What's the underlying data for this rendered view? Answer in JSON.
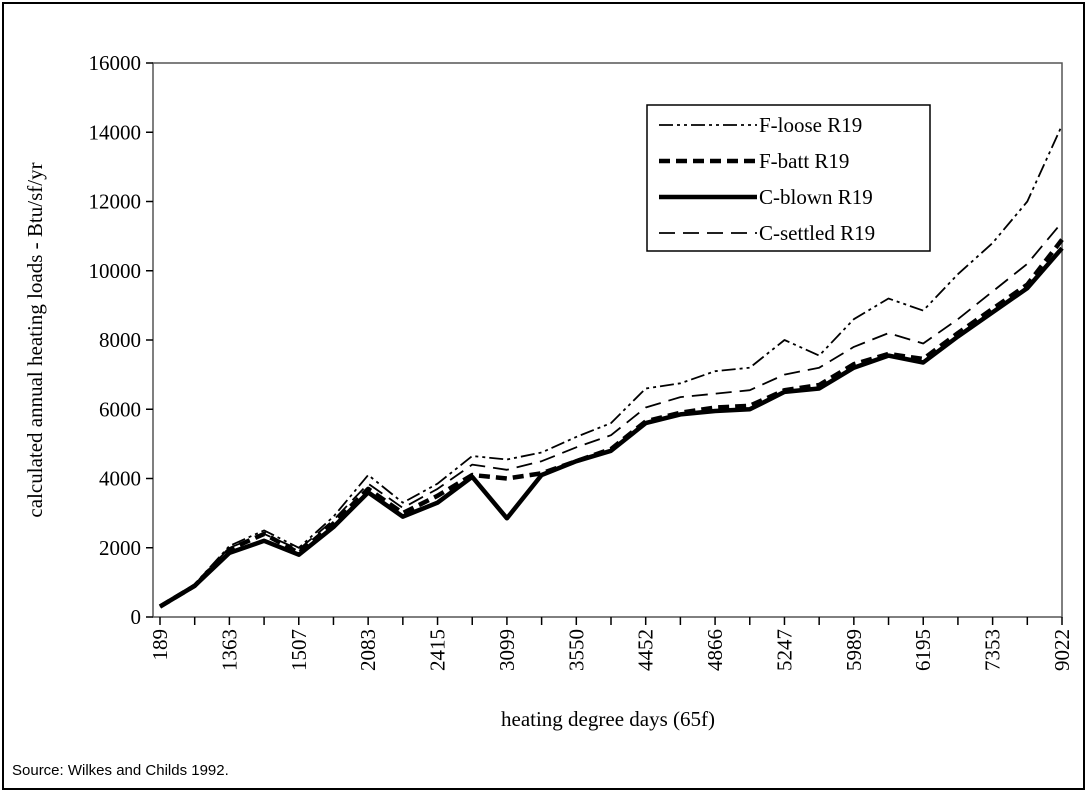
{
  "chart_data": {
    "type": "line",
    "x_label": "heating degree days (65f)",
    "y_label": "calculated annual heating loads - Btu/sf/yr",
    "source": "Source:  Wilkes and Childs 1992.",
    "categories": [
      "189",
      null,
      "1363",
      null,
      "1507",
      null,
      "2083",
      null,
      "2415",
      null,
      "3099",
      null,
      "3550",
      null,
      "4452",
      null,
      "4866",
      null,
      "5247",
      null,
      "5989",
      null,
      "6195",
      null,
      "7353",
      null,
      "9022"
    ],
    "series": [
      {
        "name": "F-loose R19",
        "color": "#000000",
        "values": [
          300,
          950,
          2050,
          2500,
          2000,
          2900,
          4100,
          3300,
          3850,
          4650,
          4550,
          4750,
          5200,
          5600,
          6600,
          6750,
          7100,
          7200,
          8000,
          7550,
          8600,
          9200,
          8850,
          9900,
          10800,
          12000,
          14200
        ]
      },
      {
        "name": "F-batt R19",
        "color": "#000000",
        "values": [
          300,
          900,
          1950,
          2400,
          1850,
          2700,
          3700,
          3000,
          3500,
          4100,
          4000,
          4150,
          4500,
          4850,
          5650,
          5900,
          6050,
          6100,
          6550,
          6700,
          7300,
          7600,
          7450,
          8200,
          8900,
          9600,
          10900
        ]
      },
      {
        "name": "C-blown R19",
        "color": "#000000",
        "values": [
          300,
          900,
          1850,
          2200,
          1800,
          2600,
          3600,
          2900,
          3300,
          4050,
          2850,
          4100,
          4500,
          4800,
          5600,
          5850,
          5950,
          6000,
          6500,
          6600,
          7200,
          7550,
          7350,
          8100,
          8800,
          9500,
          10650
        ]
      },
      {
        "name": "C-settled  R19",
        "color": "#000000",
        "values": [
          300,
          950,
          2000,
          2400,
          1950,
          2800,
          3850,
          3150,
          3700,
          4400,
          4250,
          4500,
          4900,
          5250,
          6050,
          6350,
          6450,
          6550,
          7000,
          7200,
          7800,
          8200,
          7900,
          8600,
          9400,
          10200,
          11400
        ]
      }
    ],
    "ylim": [
      0,
      16000
    ],
    "yticks": [
      0,
      2000,
      4000,
      6000,
      8000,
      10000,
      12000,
      14000,
      16000
    ],
    "legend": "upper right"
  }
}
